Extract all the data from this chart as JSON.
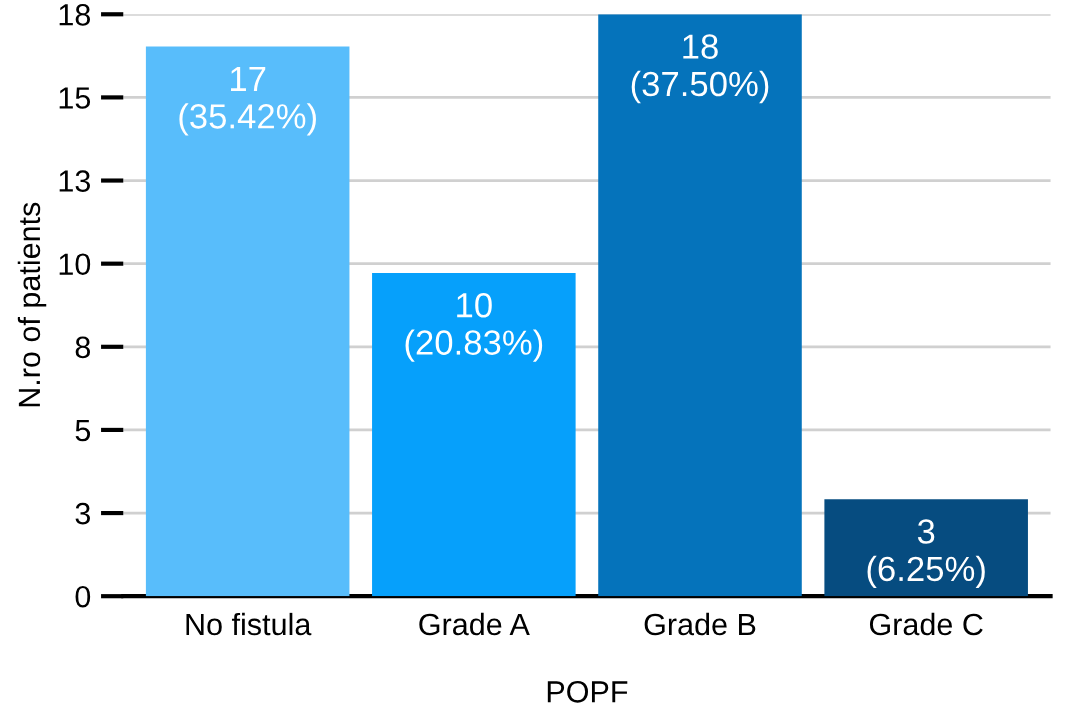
{
  "chart_data": {
    "type": "bar",
    "xlabel": "POPF",
    "ylabel": "N.ro of patients",
    "categories": [
      "No fistula",
      "Grade A",
      "Grade B",
      "Grade C"
    ],
    "values": [
      17,
      10,
      18,
      3
    ],
    "colors": [
      "#58bdfb",
      "#06a0fb",
      "#0573bb",
      "#064c80"
    ],
    "value_labels": [
      "17\n(35.42%)",
      "10\n(20.83%)",
      "18\n(37.50%)",
      "3\n(6.25%)"
    ],
    "ylim": [
      0,
      18
    ],
    "yticks": [
      0,
      {
        "value": 2.5714,
        "label": "3"
      },
      {
        "value": 5.1429,
        "label": "5"
      },
      {
        "value": 7.7143,
        "label": "8"
      },
      {
        "value": 10.2857,
        "label": "10"
      },
      {
        "value": 12.8571,
        "label": "13"
      },
      {
        "value": 15.4286,
        "label": "15"
      },
      18
    ],
    "grid": "y"
  }
}
